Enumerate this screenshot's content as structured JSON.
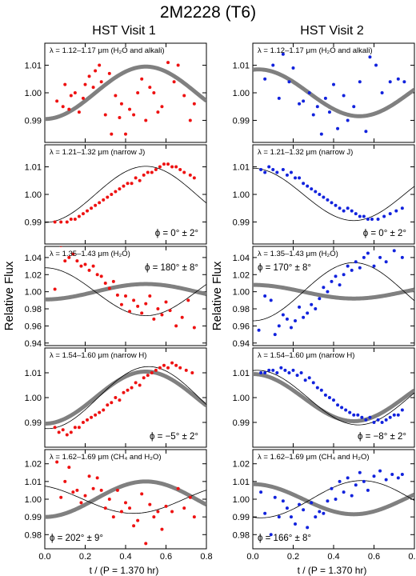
{
  "figure": {
    "title": "2M2228 (T6)",
    "columns": [
      "HST Visit 1",
      "HST Visit 2"
    ],
    "ylabel": "Relative Flux",
    "xlabel": "t / (P = 1.370 hr)",
    "series_colors": {
      "visit1": "#ee1111",
      "visit2": "#1122dd",
      "model_thick": "#808080",
      "model_thin": "#000000"
    }
  },
  "chart_data": [
    {
      "type": "scatter",
      "visit": 1,
      "band": "λ = 1.12–1.17 μm (H₂O and alkali)",
      "phase_label": "",
      "xlim": [
        0,
        0.8
      ],
      "ylim": [
        0.982,
        1.018
      ],
      "yticks": [
        "0.99",
        "1.00",
        "1.01"
      ],
      "xticks": [
        "0.0",
        "0.2",
        "0.4",
        "0.6",
        "0.8"
      ],
      "thick_model": {
        "amplitude": 0.0095,
        "phase_deg": 0,
        "offset": 1.0
      },
      "thin_model": null,
      "x": [
        0.06,
        0.09,
        0.1,
        0.12,
        0.13,
        0.15,
        0.17,
        0.19,
        0.2,
        0.22,
        0.24,
        0.25,
        0.27,
        0.28,
        0.3,
        0.32,
        0.33,
        0.35,
        0.37,
        0.38,
        0.4,
        0.42,
        0.44,
        0.46,
        0.48,
        0.5,
        0.52,
        0.54,
        0.56,
        0.58,
        0.61,
        0.64,
        0.66,
        0.69,
        0.72,
        0.74
      ],
      "y": [
        0.997,
        0.995,
        1.003,
        0.994,
        0.999,
        1.0,
        0.993,
        0.998,
        1.003,
        1.006,
        1.002,
        1.008,
        1.01,
        1.004,
        0.992,
        1.007,
        0.985,
        0.999,
        0.991,
        0.996,
        0.985,
        0.994,
        0.992,
        1.0,
        1.005,
        0.99,
        1.002,
        1.0,
        0.993,
        0.995,
        1.011,
        1.004,
        1.01,
        0.999,
        0.99,
        0.996
      ]
    },
    {
      "type": "scatter",
      "visit": 2,
      "band": "λ = 1.12–1.17 μm (H₂O and alkali)",
      "phase_label": "",
      "xlim": [
        0,
        0.8
      ],
      "ylim": [
        0.982,
        1.018
      ],
      "yticks": [
        "0.99",
        "1.00",
        "1.01"
      ],
      "xticks": [
        "0.0",
        "0.2",
        "0.4",
        "0.6",
        "0.8"
      ],
      "thick_model": {
        "amplitude": 0.0085,
        "phase_deg": 170,
        "offset": 1.0
      },
      "thin_model": null,
      "x": [
        0.03,
        0.06,
        0.1,
        0.13,
        0.15,
        0.18,
        0.2,
        0.23,
        0.25,
        0.28,
        0.3,
        0.32,
        0.34,
        0.36,
        0.38,
        0.4,
        0.42,
        0.45,
        0.47,
        0.5,
        0.53,
        0.56,
        0.58,
        0.61,
        0.64,
        0.68,
        0.72,
        0.75
      ],
      "y": [
        1.019,
        1.005,
        1.01,
        0.998,
        1.014,
        1.004,
        1.009,
        0.996,
        0.997,
        1.0,
        0.992,
        0.995,
        0.985,
        0.998,
        0.993,
        1.003,
        0.987,
        0.999,
        0.99,
        0.995,
        1.004,
        0.986,
        1.013,
        1.01,
        1.0,
        1.004,
        1.005,
        1.004
      ]
    },
    {
      "type": "scatter",
      "visit": 1,
      "band": "λ = 1.21–1.32 μm (narrow J)",
      "phase_label": "ϕ = 0° ± 2°",
      "xlim": [
        0,
        0.8
      ],
      "ylim": [
        0.982,
        1.018
      ],
      "yticks": [
        "0.99",
        "1.00",
        "1.01"
      ],
      "xticks": [
        "0.0",
        "0.2",
        "0.4",
        "0.6",
        "0.8"
      ],
      "thick_model": null,
      "thin_model": {
        "amplitude": 0.0102,
        "phase_deg": 0,
        "offset": 1.0
      },
      "x": [
        0.05,
        0.08,
        0.11,
        0.13,
        0.15,
        0.17,
        0.19,
        0.21,
        0.23,
        0.25,
        0.27,
        0.29,
        0.31,
        0.33,
        0.35,
        0.37,
        0.39,
        0.41,
        0.43,
        0.45,
        0.47,
        0.49,
        0.51,
        0.53,
        0.55,
        0.57,
        0.59,
        0.61,
        0.63,
        0.65,
        0.67,
        0.69,
        0.72,
        0.74
      ],
      "y": [
        0.99,
        0.99,
        0.99,
        0.991,
        0.991,
        0.992,
        0.993,
        0.994,
        0.995,
        0.996,
        0.997,
        0.998,
        0.999,
        1.0,
        1.001,
        1.002,
        1.003,
        1.004,
        1.004,
        1.006,
        1.005,
        1.007,
        1.008,
        1.008,
        1.009,
        1.01,
        1.011,
        1.011,
        1.01,
        1.01,
        1.009,
        1.008,
        1.007,
        1.006
      ]
    },
    {
      "type": "scatter",
      "visit": 2,
      "band": "λ = 1.21–1.32 μm (narrow J)",
      "phase_label": "ϕ = 0° ± 2°",
      "xlim": [
        0,
        0.8
      ],
      "ylim": [
        0.982,
        1.018
      ],
      "yticks": [
        "0.99",
        "1.00",
        "1.01"
      ],
      "xticks": [
        "0.0",
        "0.2",
        "0.4",
        "0.6",
        "0.8"
      ],
      "thick_model": null,
      "thin_model": {
        "amplitude": 0.0095,
        "phase_deg": 180,
        "offset": 1.0
      },
      "x": [
        0.04,
        0.06,
        0.08,
        0.1,
        0.12,
        0.15,
        0.17,
        0.19,
        0.21,
        0.23,
        0.25,
        0.27,
        0.29,
        0.31,
        0.33,
        0.35,
        0.37,
        0.39,
        0.41,
        0.43,
        0.45,
        0.47,
        0.49,
        0.51,
        0.53,
        0.55,
        0.57,
        0.59,
        0.62,
        0.65,
        0.68,
        0.71,
        0.74
      ],
      "y": [
        1.009,
        1.008,
        1.01,
        1.009,
        1.008,
        1.009,
        1.007,
        1.008,
        1.006,
        1.006,
        1.004,
        1.003,
        1.002,
        1.001,
        1.0,
        0.999,
        0.998,
        0.997,
        0.996,
        0.995,
        0.994,
        0.995,
        0.994,
        0.993,
        0.992,
        0.992,
        0.991,
        0.991,
        0.991,
        0.992,
        0.993,
        0.994,
        0.995
      ]
    },
    {
      "type": "scatter",
      "visit": 1,
      "band": "λ = 1.35–1.43 μm (H₂O)",
      "phase_label": "ϕ = 180° ± 8°",
      "xlim": [
        0,
        0.8
      ],
      "ylim": [
        0.937,
        1.053
      ],
      "yticks": [
        "0.94",
        "0.96",
        "0.98",
        "1.00",
        "1.02",
        "1.04"
      ],
      "xticks": [
        "0.0",
        "0.2",
        "0.4",
        "0.6",
        "0.8"
      ],
      "thick_model": {
        "amplitude": 0.009,
        "phase_deg": 0,
        "offset": 1.0
      },
      "thin_model": {
        "amplitude": 0.028,
        "phase_deg": 180,
        "offset": 1.0
      },
      "x": [
        0.05,
        0.08,
        0.1,
        0.12,
        0.14,
        0.16,
        0.18,
        0.2,
        0.22,
        0.24,
        0.26,
        0.28,
        0.3,
        0.32,
        0.34,
        0.36,
        0.38,
        0.4,
        0.42,
        0.44,
        0.46,
        0.48,
        0.5,
        0.52,
        0.54,
        0.56,
        0.58,
        0.6,
        0.62,
        0.65,
        0.68,
        0.71,
        0.74
      ],
      "y": [
        1.003,
        1.054,
        1.036,
        1.04,
        1.044,
        1.036,
        1.03,
        1.032,
        1.025,
        1.03,
        1.02,
        1.018,
        1.01,
        1.004,
        1.012,
        0.996,
        0.985,
        0.995,
        0.977,
        0.99,
        0.983,
        0.975,
        0.986,
        0.995,
        0.968,
        0.98,
        0.973,
        0.988,
        0.978,
        0.96,
        0.97,
        0.99,
        0.958
      ]
    },
    {
      "type": "scatter",
      "visit": 2,
      "band": "λ = 1.35–1.43 μm (H₂O)",
      "phase_label": "ϕ = 170° ± 8°",
      "xlim": [
        0,
        0.8
      ],
      "ylim": [
        0.937,
        1.053
      ],
      "yticks": [
        "0.94",
        "0.96",
        "0.98",
        "1.00",
        "1.02",
        "1.04"
      ],
      "xticks": [
        "0.0",
        "0.2",
        "0.4",
        "0.6",
        "0.8"
      ],
      "thick_model": {
        "amplitude": 0.008,
        "phase_deg": 180,
        "offset": 1.0
      },
      "thin_model": {
        "amplitude": 0.034,
        "phase_deg": 0,
        "offset": 1.0
      },
      "x": [
        0.03,
        0.06,
        0.09,
        0.11,
        0.13,
        0.15,
        0.17,
        0.19,
        0.21,
        0.23,
        0.25,
        0.27,
        0.29,
        0.31,
        0.33,
        0.35,
        0.37,
        0.39,
        0.41,
        0.43,
        0.45,
        0.47,
        0.49,
        0.51,
        0.53,
        0.55,
        0.57,
        0.6,
        0.63,
        0.66,
        0.7,
        0.74
      ],
      "y": [
        0.955,
        0.995,
        0.99,
        0.95,
        0.96,
        0.973,
        0.968,
        0.958,
        0.966,
        0.982,
        0.97,
        0.975,
        0.985,
        0.98,
        0.992,
        1.005,
        1.0,
        1.012,
        1.018,
        1.008,
        1.02,
        1.03,
        1.025,
        1.035,
        1.028,
        1.04,
        1.045,
        1.03,
        1.04,
        1.035,
        1.048,
        1.04
      ]
    },
    {
      "type": "scatter",
      "visit": 1,
      "band": "λ = 1.54–1.60 μm (narrow H)",
      "phase_label": "ϕ = −5° ± 2°",
      "xlim": [
        0,
        0.8
      ],
      "ylim": [
        0.98,
        1.02
      ],
      "yticks": [
        "0.99",
        "1.00",
        "1.01"
      ],
      "xticks": [
        "0.0",
        "0.2",
        "0.4",
        "0.6",
        "0.8"
      ],
      "thick_model": {
        "amplitude": 0.0105,
        "phase_deg": 0,
        "offset": 1.0
      },
      "thin_model": {
        "amplitude": 0.0125,
        "phase_deg": -5,
        "offset": 1.0
      },
      "x": [
        0.05,
        0.07,
        0.09,
        0.11,
        0.13,
        0.15,
        0.17,
        0.19,
        0.21,
        0.23,
        0.25,
        0.27,
        0.29,
        0.31,
        0.33,
        0.35,
        0.37,
        0.39,
        0.41,
        0.43,
        0.45,
        0.47,
        0.49,
        0.51,
        0.53,
        0.55,
        0.57,
        0.59,
        0.61,
        0.63,
        0.65,
        0.67,
        0.7,
        0.73
      ],
      "y": [
        0.988,
        0.986,
        0.987,
        0.985,
        0.986,
        0.988,
        0.988,
        0.99,
        0.991,
        0.992,
        0.993,
        0.994,
        0.995,
        0.997,
        0.998,
        1.0,
        0.999,
        1.002,
        1.003,
        1.004,
        1.006,
        1.005,
        1.008,
        1.009,
        1.01,
        1.011,
        1.012,
        1.013,
        1.012,
        1.014,
        1.013,
        1.012,
        1.011,
        1.01
      ]
    },
    {
      "type": "scatter",
      "visit": 2,
      "band": "λ = 1.54–1.60 μm (narrow H)",
      "phase_label": "ϕ = −8° ± 2°",
      "xlim": [
        0,
        0.8
      ],
      "ylim": [
        0.98,
        1.02
      ],
      "yticks": [
        "0.99",
        "1.00",
        "1.01"
      ],
      "xticks": [
        "0.0",
        "0.2",
        "0.4",
        "0.6",
        "0.8"
      ],
      "thick_model": {
        "amplitude": 0.0095,
        "phase_deg": 180,
        "offset": 1.0
      },
      "thin_model": {
        "amplitude": 0.011,
        "phase_deg": 172,
        "offset": 1.0
      },
      "x": [
        0.04,
        0.06,
        0.08,
        0.1,
        0.12,
        0.14,
        0.16,
        0.18,
        0.2,
        0.22,
        0.24,
        0.26,
        0.28,
        0.3,
        0.32,
        0.34,
        0.36,
        0.38,
        0.4,
        0.42,
        0.44,
        0.46,
        0.48,
        0.5,
        0.52,
        0.54,
        0.56,
        0.58,
        0.6,
        0.62,
        0.64,
        0.66,
        0.68,
        0.7,
        0.72,
        0.74
      ],
      "y": [
        1.01,
        1.01,
        1.011,
        1.011,
        1.01,
        1.012,
        1.011,
        1.01,
        1.011,
        1.009,
        1.01,
        1.007,
        1.008,
        1.006,
        1.004,
        1.003,
        1.001,
        1.0,
        0.999,
        0.997,
        0.996,
        0.995,
        0.994,
        0.993,
        0.993,
        0.992,
        0.991,
        0.992,
        0.99,
        0.991,
        0.99,
        0.991,
        0.992,
        0.993,
        0.993,
        0.995
      ]
    },
    {
      "type": "scatter",
      "visit": 1,
      "band": "λ = 1.62–1.69 μm (CH₄ and H₂O)",
      "phase_label": "ϕ = 202° ± 9°",
      "xlim": [
        0,
        0.8
      ],
      "ylim": [
        0.972,
        1.028
      ],
      "yticks": [
        "0.98",
        "0.99",
        "1.00",
        "1.01",
        "1.02"
      ],
      "xticks": [
        "0.0",
        "0.2",
        "0.4",
        "0.6",
        "0.8"
      ],
      "thick_model": {
        "amplitude": 0.01,
        "phase_deg": 0,
        "offset": 1.0
      },
      "thin_model": {
        "amplitude": 0.008,
        "phase_deg": 202,
        "offset": 1.0
      },
      "x": [
        0.06,
        0.08,
        0.1,
        0.12,
        0.14,
        0.16,
        0.18,
        0.2,
        0.22,
        0.24,
        0.26,
        0.28,
        0.3,
        0.32,
        0.34,
        0.36,
        0.38,
        0.4,
        0.42,
        0.44,
        0.46,
        0.48,
        0.5,
        0.52,
        0.54,
        0.56,
        0.58,
        0.6,
        0.63,
        0.66,
        0.69,
        0.72,
        0.74
      ],
      "y": [
        1.021,
        1.001,
        1.01,
        1.018,
        1.004,
        1.005,
        0.998,
        1.002,
        1.013,
        1.006,
        1.012,
        1.005,
        0.995,
        1.0,
        0.99,
        1.005,
        0.993,
        0.998,
        0.995,
        0.985,
        0.988,
        1.003,
        0.975,
        0.997,
        0.99,
        0.993,
        0.983,
        0.996,
        0.993,
        1.006,
        0.995,
        1.001,
        0.99
      ]
    },
    {
      "type": "scatter",
      "visit": 2,
      "band": "λ = 1.62–1.69 μm (CH₄ and H₂O)",
      "phase_label": "ϕ = 166° ± 8°",
      "xlim": [
        0,
        0.8
      ],
      "ylim": [
        0.972,
        1.028
      ],
      "yticks": [
        "0.98",
        "0.99",
        "1.00",
        "1.01",
        "1.02"
      ],
      "xticks": [
        "0.0",
        "0.2",
        "0.4",
        "0.6",
        "0.8"
      ],
      "thick_model": {
        "amplitude": 0.0085,
        "phase_deg": 180,
        "offset": 1.0
      },
      "thin_model": {
        "amplitude": 0.0105,
        "phase_deg": -14,
        "offset": 1.0
      },
      "x": [
        0.04,
        0.06,
        0.09,
        0.11,
        0.13,
        0.15,
        0.17,
        0.19,
        0.21,
        0.23,
        0.25,
        0.27,
        0.29,
        0.31,
        0.33,
        0.35,
        0.37,
        0.39,
        0.41,
        0.43,
        0.45,
        0.47,
        0.49,
        0.51,
        0.53,
        0.55,
        0.57,
        0.6,
        0.63,
        0.66,
        0.69,
        0.72,
        0.74
      ],
      "y": [
        1.004,
        0.992,
        0.98,
        1.001,
        0.99,
        0.999,
        0.995,
        0.99,
        0.986,
        0.997,
        0.994,
        0.984,
        0.998,
        0.99,
        0.993,
        0.992,
        0.999,
        1.006,
        1.0,
        1.01,
        1.004,
        1.012,
        1.002,
        1.008,
        1.015,
        1.01,
        1.005,
        1.013,
        1.016,
        1.011,
        1.014,
        1.012,
        1.014
      ]
    }
  ]
}
